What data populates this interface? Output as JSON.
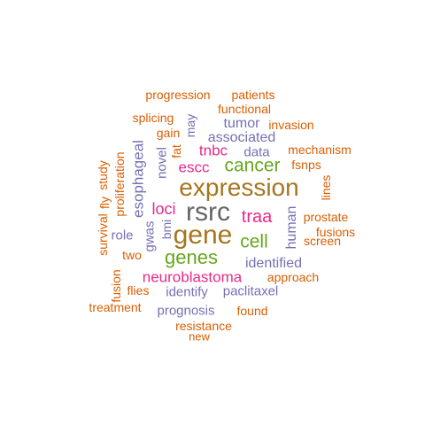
{
  "palette": {
    "orange": "#D95F02",
    "purple": "#7570B3",
    "magenta": "#E7298A",
    "green": "#66A61E",
    "brown": "#A6761D",
    "gray": "#666666"
  },
  "words": [
    {
      "key": "rsrc",
      "text": "rsrc",
      "color": "gray"
    },
    {
      "key": "expression",
      "text": "expression",
      "color": "brown"
    },
    {
      "key": "gene",
      "text": "gene",
      "color": "brown"
    },
    {
      "key": "genes",
      "text": "genes",
      "color": "green"
    },
    {
      "key": "cancer",
      "text": "cancer",
      "color": "green"
    },
    {
      "key": "cell",
      "text": "cell",
      "color": "green"
    },
    {
      "key": "neuroblastoma",
      "text": "neuroblastoma",
      "color": "magenta"
    },
    {
      "key": "traa",
      "text": "traa",
      "color": "magenta"
    },
    {
      "key": "loci",
      "text": "loci",
      "color": "magenta"
    },
    {
      "key": "escc",
      "text": "escc",
      "color": "magenta"
    },
    {
      "key": "tnbc",
      "text": "tnbc",
      "color": "magenta"
    },
    {
      "key": "esophageal",
      "text": "esophageal",
      "color": "purple"
    },
    {
      "key": "identified",
      "text": "identified",
      "color": "purple"
    },
    {
      "key": "associated",
      "text": "associated",
      "color": "purple"
    },
    {
      "key": "tumor",
      "text": "tumor",
      "color": "purple"
    },
    {
      "key": "data",
      "text": "data",
      "color": "purple"
    },
    {
      "key": "human",
      "text": "human",
      "color": "purple"
    },
    {
      "key": "novel",
      "text": "novel",
      "color": "purple"
    },
    {
      "key": "may",
      "text": "may",
      "color": "purple"
    },
    {
      "key": "gwas",
      "text": "gwas",
      "color": "purple"
    },
    {
      "key": "role",
      "text": "role",
      "color": "purple"
    },
    {
      "key": "bmi",
      "text": "bmi",
      "color": "purple"
    },
    {
      "key": "identify",
      "text": "identify",
      "color": "purple"
    },
    {
      "key": "paclitaxel",
      "text": "paclitaxel",
      "color": "purple"
    },
    {
      "key": "prognosis",
      "text": "prognosis",
      "color": "purple"
    },
    {
      "key": "progression",
      "text": "progression",
      "color": "orange"
    },
    {
      "key": "patients",
      "text": "patients",
      "color": "orange"
    },
    {
      "key": "functional",
      "text": "functional",
      "color": "orange"
    },
    {
      "key": "splicing",
      "text": "splicing",
      "color": "orange"
    },
    {
      "key": "invasion",
      "text": "invasion",
      "color": "orange"
    },
    {
      "key": "gain",
      "text": "gain",
      "color": "orange"
    },
    {
      "key": "fat",
      "text": "fat",
      "color": "orange"
    },
    {
      "key": "mechanism",
      "text": "mechanism",
      "color": "orange"
    },
    {
      "key": "fsnps",
      "text": "fsnps",
      "color": "orange"
    },
    {
      "key": "study",
      "text": "study",
      "color": "orange"
    },
    {
      "key": "proliferation",
      "text": "proliferation",
      "color": "orange"
    },
    {
      "key": "lines",
      "text": "lines",
      "color": "orange"
    },
    {
      "key": "fly",
      "text": "fly",
      "color": "orange"
    },
    {
      "key": "prostate",
      "text": "prostate",
      "color": "orange"
    },
    {
      "key": "fusions",
      "text": "fusions",
      "color": "orange"
    },
    {
      "key": "survival",
      "text": "survival",
      "color": "orange"
    },
    {
      "key": "screen",
      "text": "screen",
      "color": "orange"
    },
    {
      "key": "two",
      "text": "two",
      "color": "orange"
    },
    {
      "key": "fusion",
      "text": "fusion",
      "color": "orange"
    },
    {
      "key": "approach",
      "text": "approach",
      "color": "orange"
    },
    {
      "key": "flies",
      "text": "flies",
      "color": "orange"
    },
    {
      "key": "treatment",
      "text": "treatment",
      "color": "orange"
    },
    {
      "key": "found",
      "text": "found",
      "color": "orange"
    },
    {
      "key": "resistance",
      "text": "resistance",
      "color": "orange"
    },
    {
      "key": "new",
      "text": "new",
      "color": "orange"
    }
  ]
}
